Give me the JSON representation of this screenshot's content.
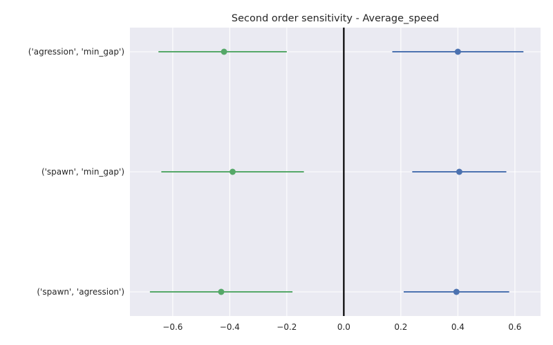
{
  "chart_data": {
    "type": "dot-errorbar",
    "title": "Second order sensitivity  -  Average_speed",
    "xlabel": "",
    "ylabel": "",
    "xlim": [
      -0.75,
      0.69
    ],
    "x_ticks": [
      -0.6,
      -0.4,
      -0.2,
      0.0,
      0.2,
      0.4,
      0.6
    ],
    "x_tick_labels": [
      "−0.6",
      "−0.4",
      "−0.2",
      "0.0",
      "0.2",
      "0.4",
      "0.6"
    ],
    "categories": [
      "('agression', 'min_gap')",
      "('spawn', 'min_gap')",
      "('spawn', 'agression')"
    ],
    "grid": true,
    "reference_line_x": 0.0,
    "series": [
      {
        "color": "#55a868",
        "points": [
          {
            "value": -0.42,
            "low": -0.65,
            "high": -0.2
          },
          {
            "value": -0.39,
            "low": -0.64,
            "high": -0.14
          },
          {
            "value": -0.43,
            "low": -0.68,
            "high": -0.18
          }
        ]
      },
      {
        "color": "#4c72b0",
        "points": [
          {
            "value": 0.4,
            "low": 0.17,
            "high": 0.63
          },
          {
            "value": 0.405,
            "low": 0.24,
            "high": 0.57
          },
          {
            "value": 0.395,
            "low": 0.21,
            "high": 0.58
          }
        ]
      }
    ],
    "colors": {
      "background": "#eaeaf2",
      "grid": "#ffffff",
      "reference_line": "#000000"
    }
  }
}
